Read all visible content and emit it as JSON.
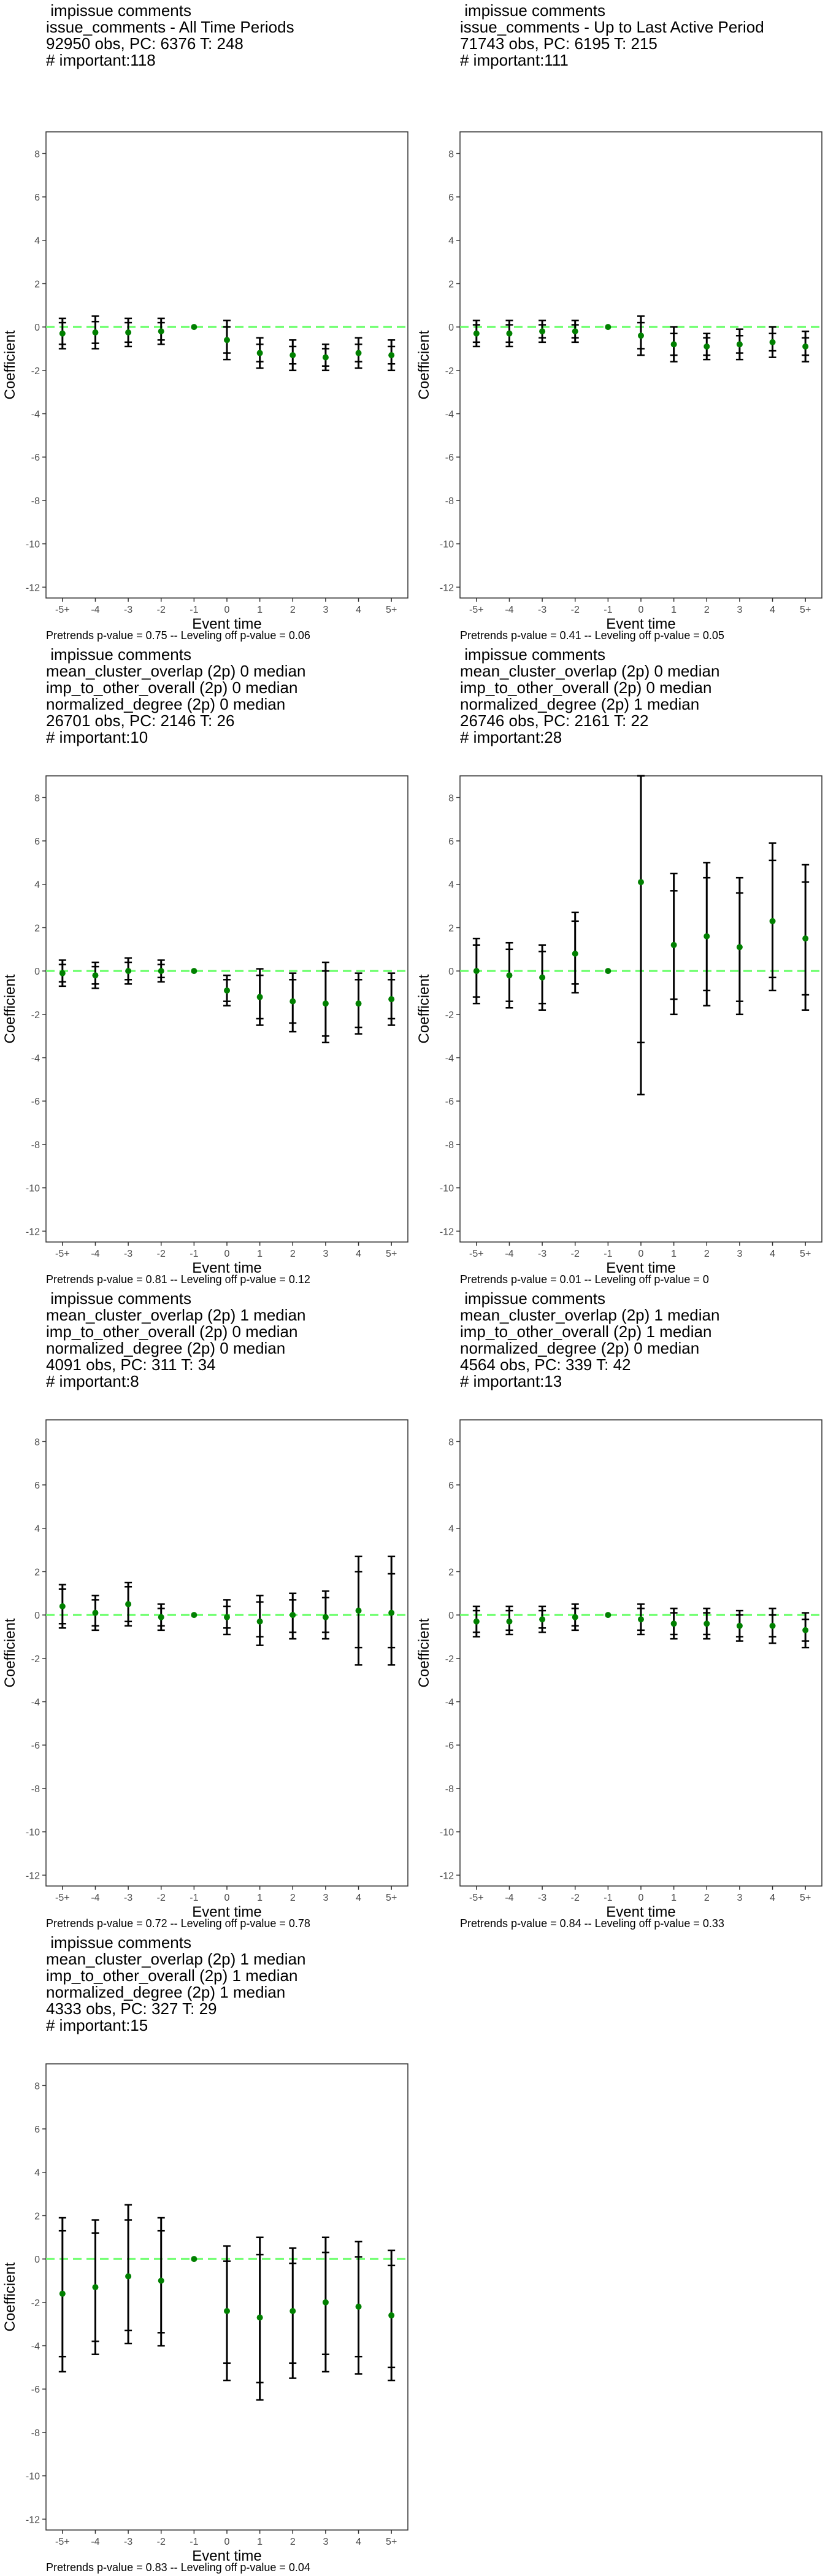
{
  "chart_data": [
    {
      "type": "scatter",
      "title_lines": [
        " impissue comments",
        "issue_comments - All Time Periods",
        "92950 obs, PC: 6376 T: 248",
        "# important:118"
      ],
      "xlabel": "Event time",
      "ylabel": "Coefficient",
      "categories": [
        "-5+",
        "-4",
        "-3",
        "-2",
        "-1",
        "0",
        "1",
        "2",
        "3",
        "4",
        "5+"
      ],
      "yticks": [
        8,
        6,
        4,
        2,
        0,
        -2,
        -4,
        -6,
        -8,
        -10,
        -12
      ],
      "ylim": [
        -12.5,
        9
      ],
      "reference_line": 0,
      "estimates": [
        -0.3,
        -0.25,
        -0.25,
        -0.2,
        0,
        -0.6,
        -1.2,
        -1.3,
        -1.4,
        -1.2,
        -1.3
      ],
      "ci_inner": [
        [
          -0.8,
          0.2
        ],
        [
          -0.75,
          0.25
        ],
        [
          -0.7,
          0.2
        ],
        [
          -0.6,
          0.2
        ],
        [
          0,
          0
        ],
        [
          -1.2,
          0.0
        ],
        [
          -1.6,
          -0.8
        ],
        [
          -1.7,
          -0.9
        ],
        [
          -1.8,
          -1.0
        ],
        [
          -1.6,
          -0.8
        ],
        [
          -1.7,
          -0.9
        ]
      ],
      "ci_outer": [
        [
          -1.0,
          0.4
        ],
        [
          -1.0,
          0.5
        ],
        [
          -0.9,
          0.4
        ],
        [
          -0.8,
          0.4
        ],
        [
          0,
          0
        ],
        [
          -1.5,
          0.3
        ],
        [
          -1.9,
          -0.5
        ],
        [
          -2.0,
          -0.6
        ],
        [
          -2.0,
          -0.8
        ],
        [
          -1.9,
          -0.5
        ],
        [
          -2.0,
          -0.6
        ]
      ],
      "footer": "Pretrends p-value = 0.75 -- Leveling off p-value = 0.06",
      "grid": false,
      "point_color": "#008000",
      "reference_color": "#66ff66"
    },
    {
      "type": "scatter",
      "title_lines": [
        " impissue comments",
        "issue_comments - Up to Last Active Period",
        "71743 obs, PC: 6195 T: 215",
        "# important:111"
      ],
      "xlabel": "Event time",
      "ylabel": "Coefficient",
      "categories": [
        "-5+",
        "-4",
        "-3",
        "-2",
        "-1",
        "0",
        "1",
        "2",
        "3",
        "4",
        "5+"
      ],
      "yticks": [
        8,
        6,
        4,
        2,
        0,
        -2,
        -4,
        -6,
        -8,
        -10,
        -12
      ],
      "ylim": [
        -12.5,
        9
      ],
      "reference_line": 0,
      "estimates": [
        -0.3,
        -0.3,
        -0.2,
        -0.2,
        0,
        -0.4,
        -0.8,
        -0.9,
        -0.8,
        -0.7,
        -0.9
      ],
      "ci_inner": [
        [
          -0.7,
          0.1
        ],
        [
          -0.7,
          0.1
        ],
        [
          -0.5,
          0.1
        ],
        [
          -0.5,
          0.1
        ],
        [
          0,
          0
        ],
        [
          -1.0,
          0.2
        ],
        [
          -1.3,
          -0.3
        ],
        [
          -1.3,
          -0.5
        ],
        [
          -1.2,
          -0.4
        ],
        [
          -1.1,
          -0.3
        ],
        [
          -1.3,
          -0.5
        ]
      ],
      "ci_outer": [
        [
          -0.9,
          0.3
        ],
        [
          -0.9,
          0.3
        ],
        [
          -0.7,
          0.3
        ],
        [
          -0.7,
          0.3
        ],
        [
          0,
          0
        ],
        [
          -1.3,
          0.5
        ],
        [
          -1.6,
          0.0
        ],
        [
          -1.5,
          -0.3
        ],
        [
          -1.5,
          -0.1
        ],
        [
          -1.4,
          0.0
        ],
        [
          -1.6,
          -0.2
        ]
      ],
      "footer": "Pretrends p-value = 0.41 -- Leveling off p-value = 0.05",
      "grid": false,
      "point_color": "#008000",
      "reference_color": "#66ff66"
    },
    {
      "type": "scatter",
      "title_lines": [
        " impissue comments",
        "mean_cluster_overlap (2p) 0 median",
        "imp_to_other_overall (2p) 0 median",
        "normalized_degree (2p) 0 median",
        "26701 obs, PC: 2146 T: 26",
        "# important:10"
      ],
      "xlabel": "Event time",
      "ylabel": "Coefficient",
      "categories": [
        "-5+",
        "-4",
        "-3",
        "-2",
        "-1",
        "0",
        "1",
        "2",
        "3",
        "4",
        "5+"
      ],
      "yticks": [
        8,
        6,
        4,
        2,
        0,
        -2,
        -4,
        -6,
        -8,
        -10,
        -12
      ],
      "ylim": [
        -12.5,
        9
      ],
      "reference_line": 0,
      "estimates": [
        -0.1,
        -0.2,
        0.0,
        0.0,
        0,
        -0.9,
        -1.2,
        -1.4,
        -1.5,
        -1.5,
        -1.3
      ],
      "ci_inner": [
        [
          -0.5,
          0.3
        ],
        [
          -0.6,
          0.2
        ],
        [
          -0.4,
          0.4
        ],
        [
          -0.3,
          0.3
        ],
        [
          0,
          0
        ],
        [
          -1.4,
          -0.4
        ],
        [
          -2.2,
          -0.2
        ],
        [
          -2.4,
          -0.4
        ],
        [
          -3.0,
          0.0
        ],
        [
          -2.6,
          -0.4
        ],
        [
          -2.2,
          -0.4
        ]
      ],
      "ci_outer": [
        [
          -0.7,
          0.5
        ],
        [
          -0.8,
          0.4
        ],
        [
          -0.6,
          0.6
        ],
        [
          -0.5,
          0.5
        ],
        [
          0,
          0
        ],
        [
          -1.6,
          -0.2
        ],
        [
          -2.5,
          0.1
        ],
        [
          -2.8,
          -0.1
        ],
        [
          -3.3,
          0.4
        ],
        [
          -2.9,
          -0.1
        ],
        [
          -2.5,
          -0.1
        ]
      ],
      "footer": "Pretrends p-value = 0.81 -- Leveling off p-value = 0.12",
      "grid": false,
      "point_color": "#008000",
      "reference_color": "#66ff66"
    },
    {
      "type": "scatter",
      "title_lines": [
        " impissue comments",
        "mean_cluster_overlap (2p) 0 median",
        "imp_to_other_overall (2p) 0 median",
        "normalized_degree (2p) 1 median",
        "26746 obs, PC: 2161 T: 22",
        "# important:28"
      ],
      "xlabel": "Event time",
      "ylabel": "Coefficient",
      "categories": [
        "-5+",
        "-4",
        "-3",
        "-2",
        "-1",
        "0",
        "1",
        "2",
        "3",
        "4",
        "5+"
      ],
      "yticks": [
        8,
        6,
        4,
        2,
        0,
        -2,
        -4,
        -6,
        -8,
        -10,
        -12
      ],
      "ylim": [
        -12.5,
        9
      ],
      "reference_line": 0,
      "estimates": [
        0.0,
        -0.2,
        -0.3,
        0.8,
        0,
        4.1,
        1.2,
        1.6,
        1.1,
        2.3,
        1.5
      ],
      "ci_inner": [
        [
          -1.2,
          1.2
        ],
        [
          -1.4,
          1.0
        ],
        [
          -1.5,
          0.9
        ],
        [
          -0.6,
          2.3
        ],
        [
          0,
          0
        ],
        [
          -3.3,
          9.0
        ],
        [
          -1.3,
          3.7
        ],
        [
          -0.9,
          4.3
        ],
        [
          -1.4,
          3.6
        ],
        [
          -0.3,
          5.1
        ],
        [
          -1.1,
          4.1
        ]
      ],
      "ci_outer": [
        [
          -1.5,
          1.5
        ],
        [
          -1.7,
          1.3
        ],
        [
          -1.8,
          1.2
        ],
        [
          -1.0,
          2.7
        ],
        [
          0,
          0
        ],
        [
          -5.7,
          9.0
        ],
        [
          -2.0,
          4.5
        ],
        [
          -1.6,
          5.0
        ],
        [
          -2.0,
          4.3
        ],
        [
          -0.9,
          5.9
        ],
        [
          -1.8,
          4.9
        ]
      ],
      "footer": "Pretrends p-value = 0.01 -- Leveling off p-value = 0",
      "grid": false,
      "point_color": "#008000",
      "reference_color": "#66ff66"
    },
    {
      "type": "scatter",
      "title_lines": [
        " impissue comments",
        "mean_cluster_overlap (2p) 1 median",
        "imp_to_other_overall (2p) 0 median",
        "normalized_degree (2p) 0 median",
        "4091 obs, PC: 311 T: 34",
        "# important:8"
      ],
      "xlabel": "Event time",
      "ylabel": "Coefficient",
      "categories": [
        "-5+",
        "-4",
        "-3",
        "-2",
        "-1",
        "0",
        "1",
        "2",
        "3",
        "4",
        "5+"
      ],
      "yticks": [
        8,
        6,
        4,
        2,
        0,
        -2,
        -4,
        -6,
        -8,
        -10,
        -12
      ],
      "ylim": [
        -12.5,
        9
      ],
      "reference_line": 0,
      "estimates": [
        0.4,
        0.1,
        0.5,
        -0.1,
        0,
        -0.1,
        -0.3,
        0.0,
        -0.1,
        0.2,
        0.1
      ],
      "ci_inner": [
        [
          -0.4,
          1.2
        ],
        [
          -0.5,
          0.7
        ],
        [
          -0.3,
          1.3
        ],
        [
          -0.5,
          0.3
        ],
        [
          0,
          0
        ],
        [
          -0.6,
          0.4
        ],
        [
          -1.0,
          0.6
        ],
        [
          -0.8,
          0.7
        ],
        [
          -0.8,
          0.8
        ],
        [
          -1.5,
          2.0
        ],
        [
          -1.5,
          1.9
        ]
      ],
      "ci_outer": [
        [
          -0.6,
          1.4
        ],
        [
          -0.7,
          0.9
        ],
        [
          -0.5,
          1.5
        ],
        [
          -0.7,
          0.5
        ],
        [
          0,
          0
        ],
        [
          -0.9,
          0.7
        ],
        [
          -1.4,
          0.9
        ],
        [
          -1.1,
          1.0
        ],
        [
          -1.1,
          1.1
        ],
        [
          -2.3,
          2.7
        ],
        [
          -2.3,
          2.7
        ]
      ],
      "footer": "Pretrends p-value = 0.72 -- Leveling off p-value = 0.78",
      "grid": false,
      "point_color": "#008000",
      "reference_color": "#66ff66"
    },
    {
      "type": "scatter",
      "title_lines": [
        " impissue comments",
        "mean_cluster_overlap (2p) 1 median",
        "imp_to_other_overall (2p) 1 median",
        "normalized_degree (2p) 0 median",
        "4564 obs, PC: 339 T: 42",
        "# important:13"
      ],
      "xlabel": "Event time",
      "ylabel": "Coefficient",
      "categories": [
        "-5+",
        "-4",
        "-3",
        "-2",
        "-1",
        "0",
        "1",
        "2",
        "3",
        "4",
        "5+"
      ],
      "yticks": [
        8,
        6,
        4,
        2,
        0,
        -2,
        -4,
        -6,
        -8,
        -10,
        -12
      ],
      "ylim": [
        -12.5,
        9
      ],
      "reference_line": 0,
      "estimates": [
        -0.3,
        -0.3,
        -0.2,
        -0.1,
        0,
        -0.2,
        -0.4,
        -0.4,
        -0.5,
        -0.5,
        -0.7
      ],
      "ci_inner": [
        [
          -0.8,
          0.2
        ],
        [
          -0.7,
          0.2
        ],
        [
          -0.6,
          0.2
        ],
        [
          -0.5,
          0.3
        ],
        [
          0,
          0
        ],
        [
          -0.7,
          0.3
        ],
        [
          -0.9,
          0.1
        ],
        [
          -0.9,
          0.1
        ],
        [
          -1.0,
          0.0
        ],
        [
          -1.0,
          0.0
        ],
        [
          -1.2,
          -0.2
        ]
      ],
      "ci_outer": [
        [
          -1.0,
          0.4
        ],
        [
          -0.9,
          0.4
        ],
        [
          -0.8,
          0.4
        ],
        [
          -0.7,
          0.5
        ],
        [
          0,
          0
        ],
        [
          -0.9,
          0.5
        ],
        [
          -1.1,
          0.3
        ],
        [
          -1.1,
          0.3
        ],
        [
          -1.2,
          0.2
        ],
        [
          -1.3,
          0.3
        ],
        [
          -1.5,
          0.1
        ]
      ],
      "footer": "Pretrends p-value = 0.84 -- Leveling off p-value = 0.33",
      "grid": false,
      "point_color": "#008000",
      "reference_color": "#66ff66"
    },
    {
      "type": "scatter",
      "title_lines": [
        " impissue comments",
        "mean_cluster_overlap (2p) 1 median",
        "imp_to_other_overall (2p) 1 median",
        "normalized_degree (2p) 1 median",
        "4333 obs, PC: 327 T: 29",
        "# important:15"
      ],
      "xlabel": "Event time",
      "ylabel": "Coefficient",
      "categories": [
        "-5+",
        "-4",
        "-3",
        "-2",
        "-1",
        "0",
        "1",
        "2",
        "3",
        "4",
        "5+"
      ],
      "yticks": [
        8,
        6,
        4,
        2,
        0,
        -2,
        -4,
        -6,
        -8,
        -10,
        -12
      ],
      "ylim": [
        -12.5,
        9
      ],
      "reference_line": 0,
      "estimates": [
        -1.6,
        -1.3,
        -0.8,
        -1.0,
        0,
        -2.4,
        -2.7,
        -2.4,
        -2.0,
        -2.2,
        -2.6
      ],
      "ci_inner": [
        [
          -4.5,
          1.3
        ],
        [
          -3.8,
          1.2
        ],
        [
          -3.3,
          1.8
        ],
        [
          -3.4,
          1.3
        ],
        [
          0,
          0
        ],
        [
          -4.8,
          -0.1
        ],
        [
          -5.7,
          0.2
        ],
        [
          -4.8,
          -0.2
        ],
        [
          -4.4,
          0.3
        ],
        [
          -4.5,
          0.1
        ],
        [
          -5.0,
          -0.3
        ]
      ],
      "ci_outer": [
        [
          -5.2,
          1.9
        ],
        [
          -4.4,
          1.8
        ],
        [
          -3.9,
          2.5
        ],
        [
          -4.0,
          1.9
        ],
        [
          0,
          0
        ],
        [
          -5.6,
          0.6
        ],
        [
          -6.5,
          1.0
        ],
        [
          -5.5,
          0.5
        ],
        [
          -5.2,
          1.0
        ],
        [
          -5.3,
          0.8
        ],
        [
          -5.6,
          0.4
        ]
      ],
      "footer": "Pretrends p-value = 0.83 -- Leveling off p-value = 0.04",
      "grid": false,
      "point_color": "#008000",
      "reference_color": "#66ff66"
    }
  ]
}
